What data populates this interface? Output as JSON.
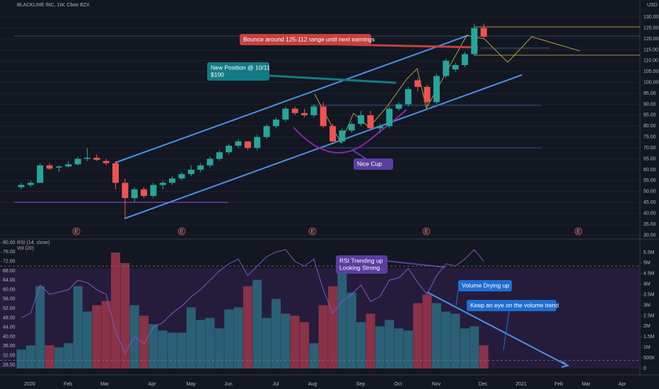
{
  "header": "BLACKLINE INC, 1W, Cboe BZX",
  "currency": "USD",
  "chart_data": [
    {
      "type": "candlestick",
      "up_color": "#26a69a",
      "down_color": "#ef5350",
      "open": [
        52,
        53,
        54,
        62,
        61,
        61.5,
        62.5,
        65,
        65.5,
        64,
        63,
        54,
        47,
        51,
        48,
        53,
        54,
        56,
        58,
        60,
        62,
        65,
        68,
        71,
        73,
        70,
        75,
        80,
        83,
        88,
        86,
        85,
        89,
        80,
        73,
        78,
        81,
        85,
        79,
        80,
        88,
        90,
        101,
        98,
        91,
        103,
        106,
        108,
        113,
        125
      ],
      "high": [
        54,
        55,
        63,
        63,
        62,
        64,
        66,
        70,
        67,
        65,
        64,
        56,
        52,
        52,
        54,
        55,
        57,
        59,
        62,
        63,
        66,
        69,
        72,
        74,
        73,
        76,
        81,
        84,
        89,
        89,
        88,
        90,
        91,
        81,
        79,
        82,
        87,
        87,
        81,
        89,
        91,
        98,
        102,
        99,
        104,
        111,
        109,
        114,
        127,
        127
      ],
      "low": [
        51,
        52,
        54,
        60,
        59,
        61,
        62,
        64,
        64,
        62,
        51,
        38,
        45,
        47,
        47,
        51,
        53,
        55,
        57,
        59,
        61,
        64,
        67,
        70,
        69,
        69,
        74,
        79,
        82,
        85,
        84,
        84,
        79,
        72,
        72,
        77,
        80,
        78,
        77,
        79,
        87,
        89,
        96,
        89,
        90,
        102,
        105,
        107,
        112,
        120
      ],
      "close": [
        53,
        54,
        62,
        60.5,
        61.5,
        62.5,
        65,
        65.5,
        64.5,
        63,
        54,
        47,
        51,
        48,
        53,
        54,
        56,
        58,
        60,
        62,
        65,
        68,
        71,
        73,
        70,
        75,
        80,
        83,
        88,
        86,
        85,
        89,
        80,
        73,
        78,
        81,
        85,
        79,
        80,
        88,
        90,
        97,
        98,
        91,
        103,
        110,
        108,
        113,
        125,
        121
      ],
      "ylim": [
        29.5,
        132
      ],
      "yticks": [
        {
          "value": 30,
          "label": "30.00"
        },
        {
          "value": 35,
          "label": "35.00"
        },
        {
          "value": 40,
          "label": "40.00"
        },
        {
          "value": 45,
          "label": "45.00"
        },
        {
          "value": 50,
          "label": "50.00"
        },
        {
          "value": 55,
          "label": "55.00"
        },
        {
          "value": 60,
          "label": "60.00"
        },
        {
          "value": 65,
          "label": "65.00"
        },
        {
          "value": 70,
          "label": "70.00"
        },
        {
          "value": 75,
          "label": "75.00"
        },
        {
          "value": 80,
          "label": "80.00"
        },
        {
          "value": 85,
          "label": "85.00"
        },
        {
          "value": 90,
          "label": "90.00"
        },
        {
          "value": 95,
          "label": "95.00"
        },
        {
          "value": 100,
          "label": "100.00"
        },
        {
          "value": 105,
          "label": "105.00"
        },
        {
          "value": 110,
          "label": "110.00"
        },
        {
          "value": 115,
          "label": "115.00"
        },
        {
          "value": 120,
          "label": "120.00"
        },
        {
          "value": 125,
          "label": "125.00"
        },
        {
          "value": 130,
          "label": "130.00"
        }
      ],
      "x_labels": [
        "2020",
        "Feb",
        "Mar",
        "Apr",
        "May",
        "Jun",
        "Jul",
        "Aug",
        "Sep",
        "Oct",
        "Nov",
        "Dec",
        "2021",
        "Feb",
        "Mar",
        "Apr"
      ],
      "earnings_markers": [
        "E",
        "E",
        "E",
        "E",
        "E"
      ],
      "annotations": [
        {
          "lines": [
            "Bounce around 125-112 range until next earnings"
          ],
          "color": "#c2413f"
        },
        {
          "lines": [
            "New Position @ 10/11",
            "$100"
          ],
          "color": "#137b86"
        },
        {
          "lines": [
            "Nice Cup"
          ],
          "color": "#5b3ea0"
        }
      ]
    },
    {
      "type": "bar",
      "title": "Vol (20)",
      "values": [
        0.9,
        1.1,
        3.9,
        1.1,
        1.0,
        1.2,
        3.9,
        2.7,
        3.0,
        3.2,
        5.5,
        5.0,
        3.0,
        2.5,
        2.1,
        1.8,
        1.7,
        1.7,
        2.9,
        2.3,
        2.4,
        1.9,
        2.8,
        2.9,
        3.9,
        4.2,
        2.4,
        3.3,
        2.6,
        2.5,
        2.2,
        1.2,
        3.0,
        3.9,
        5.0,
        3.6,
        2.2,
        2.6,
        2.0,
        2.3,
        1.9,
        1.8,
        3.1,
        3.5,
        3.1,
        2.7,
        2.6,
        1.9,
        2.0,
        1.1
      ],
      "ylim": [
        0,
        6.07
      ],
      "yticks": [
        0,
        {
          "value": 0.5,
          "label": "500K"
        },
        {
          "value": 1,
          "label": "1M"
        },
        {
          "value": 1.5,
          "label": "1.5M"
        },
        {
          "value": 2,
          "label": "2M"
        },
        {
          "value": 2.5,
          "label": "2.5M"
        },
        {
          "value": 3,
          "label": "3M"
        },
        {
          "value": 3.5,
          "label": "3.5M"
        },
        {
          "value": 4,
          "label": "4M"
        },
        {
          "value": 4.5,
          "label": "4.5M"
        },
        {
          "value": 5,
          "label": "5M"
        },
        {
          "value": 5.5,
          "label": "5.5M"
        }
      ],
      "annotations": [
        {
          "lines": [
            "Volume Drying up"
          ],
          "color": "#1f6fd1"
        },
        {
          "lines": [
            "Keep an eye on the volume trend"
          ],
          "color": "#1f6fd1"
        }
      ]
    },
    {
      "type": "line",
      "title": "RSI (14, close)",
      "color": "#7e57c2",
      "values": [
        48,
        50,
        62,
        58,
        59,
        60,
        64,
        63,
        60,
        58,
        42,
        33,
        40,
        37,
        44,
        46,
        50,
        53,
        57,
        60,
        64,
        68,
        71,
        73,
        66,
        70,
        74,
        76,
        77,
        72,
        70,
        73,
        60,
        50,
        55,
        58,
        62,
        55,
        57,
        64,
        65,
        69,
        63,
        58,
        66,
        71,
        70,
        73,
        77,
        72
      ],
      "ylim": [
        26.2,
        80.9
      ],
      "bands": [
        30,
        70
      ],
      "yticks": [
        {
          "value": 28,
          "label": "28.00"
        },
        {
          "value": 32,
          "label": "32.00"
        },
        {
          "value": 36,
          "label": "36.00"
        },
        {
          "value": 40,
          "label": "40.00"
        },
        {
          "value": 44,
          "label": "44.00"
        },
        {
          "value": 48,
          "label": "48.00"
        },
        {
          "value": 52,
          "label": "52.00"
        },
        {
          "value": 56,
          "label": "56.00"
        },
        {
          "value": 60,
          "label": "60.00"
        },
        {
          "value": 64,
          "label": "64.00"
        },
        {
          "value": 68,
          "label": "68.00"
        },
        {
          "value": 72,
          "label": "72.00"
        },
        {
          "value": 76,
          "label": "76.00"
        },
        {
          "value": 80,
          "label": "80.00"
        }
      ],
      "annotations": [
        {
          "lines": [
            "RSI Trending up",
            "Looking Strong"
          ],
          "color": "#5b3ea0"
        }
      ]
    }
  ]
}
